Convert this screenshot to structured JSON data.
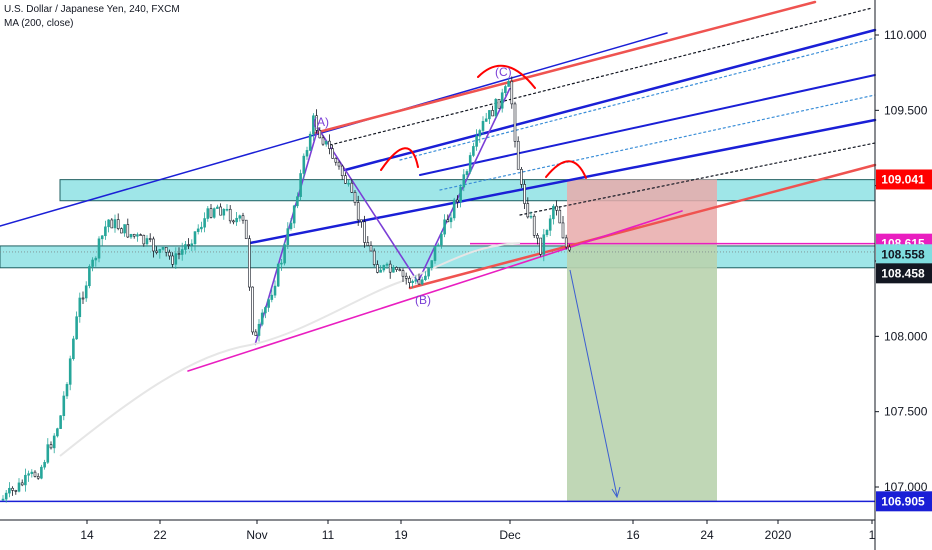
{
  "header": {
    "symbol_line": "U.S. Dollar / Japanese Yen, 240, FXCM",
    "indicator_line": "MA (200, close)"
  },
  "colors": {
    "up_candle": "#26a69a",
    "down_candle": "#131722",
    "zone_fill": "#7fdde0",
    "red_line": "#ef5350",
    "blue_line": "#1a1fd6",
    "magenta_line": "#e91ec0",
    "ma_line": "#e6e6e6",
    "stop_box": "#e8aaaa",
    "target_box": "#b9d3ae",
    "purple_wave": "#7b3fd6",
    "red_tag": "#ff0000",
    "magenta_tag": "#e91ec0",
    "dark_tag": "#131722",
    "blue_tag": "#1a1fd6"
  },
  "chart_data": {
    "type": "candlestick",
    "title": "U.S. Dollar / Japanese Yen, 240, FXCM",
    "indicator": "MA (200, close)",
    "ylim": [
      106.84,
      110.2
    ],
    "y_ticks": [
      107.0,
      107.5,
      108.0,
      108.5,
      109.0,
      109.5,
      110.0
    ],
    "y_tick_labels": [
      "107.000",
      "107.500",
      "108.000",
      "108.500",
      "109.000",
      "109.500",
      "110.000"
    ],
    "x_tick_labels": [
      "14",
      "22",
      "Nov",
      "11",
      "19",
      "Dec",
      "16",
      "24",
      "2020",
      "1"
    ],
    "price_tags": [
      {
        "label": "109.041",
        "value": 109.041,
        "kind": "red"
      },
      {
        "label": "108.615",
        "value": 108.615,
        "kind": "magenta"
      },
      {
        "label": "108.558",
        "value": 108.558,
        "kind": "zone"
      },
      {
        "label": "108.458",
        "value": 108.458,
        "kind": "dark"
      },
      {
        "label": "106.905",
        "value": 106.905,
        "kind": "blue"
      }
    ],
    "wave_labels": [
      "(A)",
      "(B)",
      "(C)"
    ],
    "zones": [
      {
        "top": 109.04,
        "bottom": 108.9
      },
      {
        "top": 108.6,
        "bottom": 108.455
      }
    ],
    "trade": {
      "entry": 108.615,
      "stop": 109.041,
      "target": 106.905
    },
    "horizontal_lines": [
      {
        "value": 106.905,
        "kind": "blue"
      },
      {
        "value": 108.615,
        "kind": "magenta"
      }
    ],
    "grid": false
  }
}
